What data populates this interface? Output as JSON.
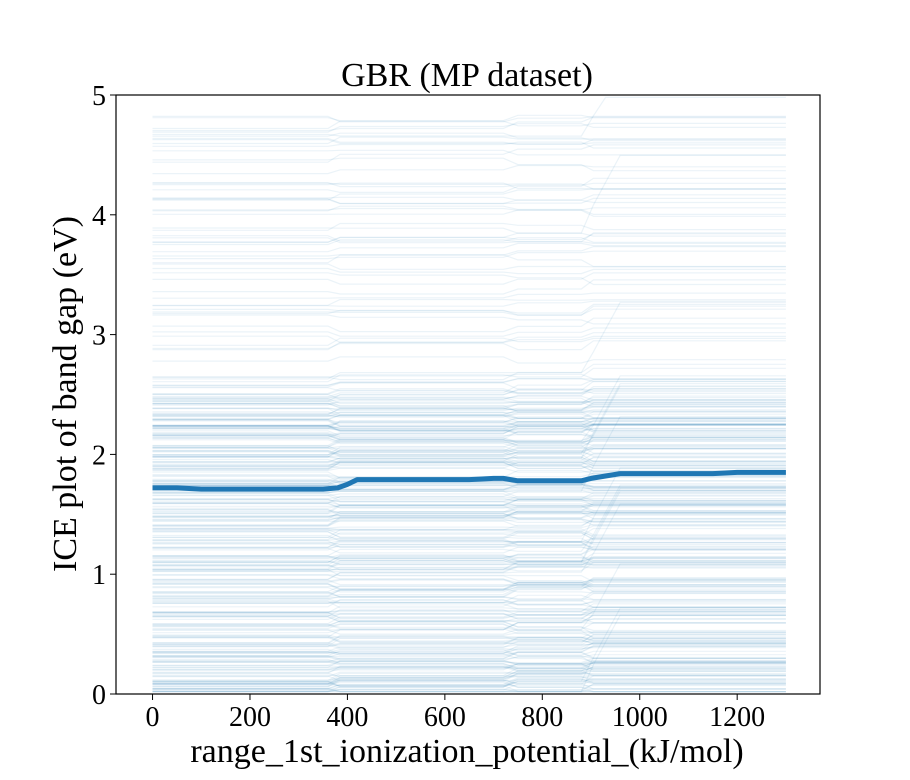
{
  "chart_data": {
    "type": "line",
    "title": "GBR (MP dataset)",
    "xlabel": "range_1st_ionization_potential_(kJ/mol)",
    "ylabel": "ICE plot of band gap (eV)",
    "xlim": [
      -75,
      1370
    ],
    "ylim": [
      0,
      5
    ],
    "xticks": [
      0,
      200,
      400,
      600,
      800,
      1000,
      1200
    ],
    "yticks": [
      0,
      1,
      2,
      3,
      4,
      5
    ],
    "grid": false,
    "ice_color": "#1f77b4",
    "average_color": "#1f77b4",
    "series": [
      {
        "x": [
          0,
          50,
          100,
          150,
          200,
          250,
          300,
          350,
          380,
          400,
          420,
          450,
          500,
          550,
          600,
          650,
          700,
          720,
          750,
          800,
          850,
          880,
          900,
          930,
          960,
          1000,
          1050,
          1100,
          1150,
          1200,
          1250,
          1300
        ],
        "y": [
          1.72,
          1.72,
          1.71,
          1.71,
          1.71,
          1.71,
          1.71,
          1.71,
          1.72,
          1.75,
          1.79,
          1.79,
          1.79,
          1.79,
          1.79,
          1.79,
          1.8,
          1.8,
          1.78,
          1.78,
          1.78,
          1.78,
          1.8,
          1.82,
          1.84,
          1.84,
          1.84,
          1.84,
          1.84,
          1.85,
          1.85,
          1.85
        ]
      }
    ]
  }
}
